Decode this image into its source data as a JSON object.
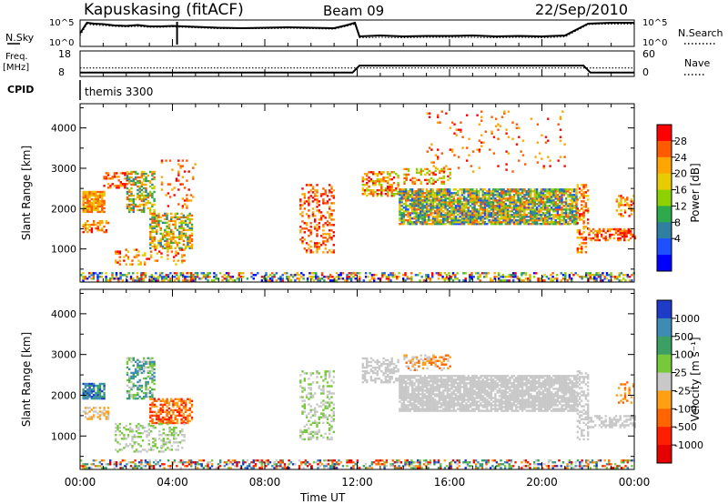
{
  "header": {
    "station": "Kapuskasing (fitACF)",
    "beam": "Beam 09",
    "date": "22/Sep/2010"
  },
  "panels": {
    "nsky_label": "N.Sky",
    "nsearch_label": "N.Search",
    "freq_label_1": "Freq.",
    "freq_label_2": "[MHz]",
    "nave_label": "Nave",
    "cpid_label": "CPID",
    "cpid_value": "themis 3300",
    "nsky_ticks": [
      "10^5",
      "10^0"
    ],
    "nsearch_ticks": [
      "10^5",
      "10^0"
    ],
    "freq_ticks": [
      "18",
      "8"
    ],
    "nave_ticks": [
      "60",
      "0"
    ]
  },
  "chart_data": [
    {
      "type": "line",
      "name": "nsky-nsearch",
      "x": [
        0,
        0.3,
        0.6,
        1,
        1.5,
        2,
        2.5,
        3,
        3.5,
        4,
        4.5,
        5,
        6,
        7,
        8,
        9,
        10,
        11,
        11.5,
        11.9,
        12.1,
        13,
        14,
        15,
        16,
        17,
        18,
        19,
        20,
        21,
        22,
        22.5,
        23,
        24
      ],
      "nsky_log": [
        2.5,
        4.8,
        4.6,
        4.5,
        4.2,
        4.1,
        4.3,
        4.0,
        4.0,
        4.1,
        4.0,
        3.9,
        3.7,
        3.6,
        3.7,
        3.8,
        3.7,
        3.6,
        4.2,
        4.8,
        1.8,
        2.0,
        1.8,
        1.9,
        1.9,
        2.0,
        1.8,
        1.9,
        1.8,
        2.0,
        4.6,
        4.7,
        4.8,
        4.8
      ],
      "nsearch_log": [
        2.0,
        4.5,
        4.3,
        4.2,
        4.0,
        3.9,
        4.0,
        3.8,
        3.8,
        3.9,
        3.8,
        3.7,
        3.5,
        3.5,
        3.5,
        3.6,
        3.5,
        3.4,
        4.0,
        4.5,
        1.5,
        1.6,
        1.5,
        1.6,
        1.6,
        1.6,
        1.5,
        1.6,
        1.5,
        1.7,
        4.4,
        4.5,
        4.5,
        4.5
      ]
    },
    {
      "type": "line",
      "name": "frequency-nave",
      "x": [
        0,
        0.4,
        4.2,
        4.3,
        11.8,
        12.1,
        21.8,
        22.1,
        24
      ],
      "freq_mhz": [
        9,
        9,
        9,
        9,
        9,
        12.5,
        12.5,
        9,
        9
      ],
      "nave": [
        20,
        20,
        20,
        20,
        20,
        20,
        20,
        20,
        20
      ]
    },
    {
      "type": "heatmap",
      "name": "power",
      "ylabel": "Slant Range [km]",
      "cbar_label": "Power [dB]",
      "cbar_ticks": [
        "28",
        "24",
        "20",
        "16",
        "12",
        "8",
        "4"
      ],
      "cbar_colors": [
        "#ff0000",
        "#ff5a00",
        "#ffa500",
        "#e6cc00",
        "#8cd200",
        "#2eaa4c",
        "#2f7fa0",
        "#1e50ff",
        "#0000ff"
      ],
      "xlim": [
        0,
        24
      ],
      "ylim": [
        180,
        4600
      ],
      "yticks": [
        1000,
        2000,
        3000,
        4000
      ],
      "regions": [
        {
          "t0": 0,
          "t1": 24,
          "r0": 200,
          "r1": 420,
          "dens": 0.45,
          "lvl": [
            0,
            8
          ]
        },
        {
          "t0": 0.1,
          "t1": 1.0,
          "r0": 1900,
          "r1": 2400,
          "dens": 0.8,
          "lvl": [
            1,
            3
          ]
        },
        {
          "t0": 0.1,
          "t1": 1.2,
          "r0": 1400,
          "r1": 1700,
          "dens": 0.6,
          "lvl": [
            0,
            3
          ]
        },
        {
          "t0": 1.0,
          "t1": 2.0,
          "r0": 2500,
          "r1": 2900,
          "dens": 0.35,
          "lvl": [
            0,
            2
          ]
        },
        {
          "t0": 2.0,
          "t1": 3.2,
          "r0": 1900,
          "r1": 2900,
          "dens": 0.55,
          "lvl": [
            1,
            6
          ]
        },
        {
          "t0": 3.0,
          "t1": 4.8,
          "r0": 1000,
          "r1": 1900,
          "dens": 0.55,
          "lvl": [
            1,
            6
          ]
        },
        {
          "t0": 1.5,
          "t1": 4.5,
          "r0": 600,
          "r1": 1000,
          "dens": 0.25,
          "lvl": [
            0,
            3
          ]
        },
        {
          "t0": 3.5,
          "t1": 5.0,
          "r0": 2000,
          "r1": 3200,
          "dens": 0.15,
          "lvl": [
            0,
            2
          ]
        },
        {
          "t0": 9.5,
          "t1": 11.0,
          "r0": 900,
          "r1": 2600,
          "dens": 0.3,
          "lvl": [
            0,
            2
          ]
        },
        {
          "t0": 12.2,
          "t1": 13.8,
          "r0": 2300,
          "r1": 2900,
          "dens": 0.55,
          "lvl": [
            0,
            4
          ]
        },
        {
          "t0": 13.8,
          "t1": 21.5,
          "r0": 1600,
          "r1": 2500,
          "dens": 0.85,
          "lvl": [
            1,
            7
          ]
        },
        {
          "t0": 14.0,
          "t1": 16.0,
          "r0": 2600,
          "r1": 3000,
          "dens": 0.4,
          "lvl": [
            0,
            4
          ]
        },
        {
          "t0": 15.0,
          "t1": 21.0,
          "r0": 2900,
          "r1": 4400,
          "dens": 0.05,
          "lvl": [
            0,
            2
          ]
        },
        {
          "t0": 21.5,
          "t1": 22.0,
          "r0": 900,
          "r1": 2600,
          "dens": 0.4,
          "lvl": [
            0,
            3
          ]
        },
        {
          "t0": 22.0,
          "t1": 24.0,
          "r0": 1200,
          "r1": 1500,
          "dens": 0.55,
          "lvl": [
            0,
            2
          ]
        },
        {
          "t0": 23.2,
          "t1": 24.0,
          "r0": 1800,
          "r1": 2300,
          "dens": 0.3,
          "lvl": [
            0,
            3
          ]
        }
      ]
    },
    {
      "type": "heatmap",
      "name": "velocity",
      "ylabel": "Slant Range [km]",
      "xlabel": "Time UT",
      "xticks": [
        "00:00",
        "04:00",
        "08:00",
        "12:00",
        "16:00",
        "20:00",
        "00:00"
      ],
      "cbar_label": "Velocity [m s⁻¹]",
      "cbar_ticks": [
        "1000",
        "500",
        "100",
        "25",
        "-25",
        "-100",
        "-500",
        "-1000"
      ],
      "cbar_colors": [
        "#1e3cc8",
        "#3c8cb4",
        "#3ca064",
        "#78c83c",
        "#c8c8c8",
        "#ffa014",
        "#ff6400",
        "#ff1e00",
        "#e60000"
      ],
      "xlim": [
        0,
        24
      ],
      "ylim": [
        180,
        4600
      ],
      "yticks": [
        1000,
        2000,
        3000,
        4000
      ],
      "regions": [
        {
          "t0": 0,
          "t1": 24,
          "r0": 200,
          "r1": 420,
          "dens": 0.4,
          "lvl": [
            0,
            8
          ]
        },
        {
          "t0": 0.1,
          "t1": 1.0,
          "r0": 1900,
          "r1": 2300,
          "dens": 0.8,
          "lvl": [
            0,
            2
          ]
        },
        {
          "t0": 0.1,
          "t1": 1.2,
          "r0": 1400,
          "r1": 1700,
          "dens": 0.5,
          "lvl": [
            4,
            5
          ]
        },
        {
          "t0": 2.0,
          "t1": 3.2,
          "r0": 1900,
          "r1": 2900,
          "dens": 0.55,
          "lvl": [
            1,
            4
          ]
        },
        {
          "t0": 3.0,
          "t1": 4.8,
          "r0": 1300,
          "r1": 1900,
          "dens": 0.6,
          "lvl": [
            5,
            7
          ]
        },
        {
          "t0": 1.5,
          "t1": 4.5,
          "r0": 600,
          "r1": 1300,
          "dens": 0.3,
          "lvl": [
            3,
            4
          ]
        },
        {
          "t0": 9.5,
          "t1": 11.0,
          "r0": 900,
          "r1": 2600,
          "dens": 0.3,
          "lvl": [
            3,
            4
          ]
        },
        {
          "t0": 12.2,
          "t1": 13.8,
          "r0": 2300,
          "r1": 2900,
          "dens": 0.55,
          "lvl": [
            4,
            4
          ]
        },
        {
          "t0": 13.8,
          "t1": 21.5,
          "r0": 1600,
          "r1": 2500,
          "dens": 0.85,
          "lvl": [
            4,
            4
          ]
        },
        {
          "t0": 14.0,
          "t1": 16.0,
          "r0": 2600,
          "r1": 3000,
          "dens": 0.4,
          "lvl": [
            4,
            6
          ]
        },
        {
          "t0": 21.5,
          "t1": 22.0,
          "r0": 900,
          "r1": 2600,
          "dens": 0.4,
          "lvl": [
            4,
            4
          ]
        },
        {
          "t0": 22.0,
          "t1": 24.0,
          "r0": 1200,
          "r1": 1500,
          "dens": 0.55,
          "lvl": [
            4,
            4
          ]
        },
        {
          "t0": 23.2,
          "t1": 24.0,
          "r0": 1800,
          "r1": 2300,
          "dens": 0.3,
          "lvl": [
            5,
            6
          ]
        }
      ]
    }
  ]
}
